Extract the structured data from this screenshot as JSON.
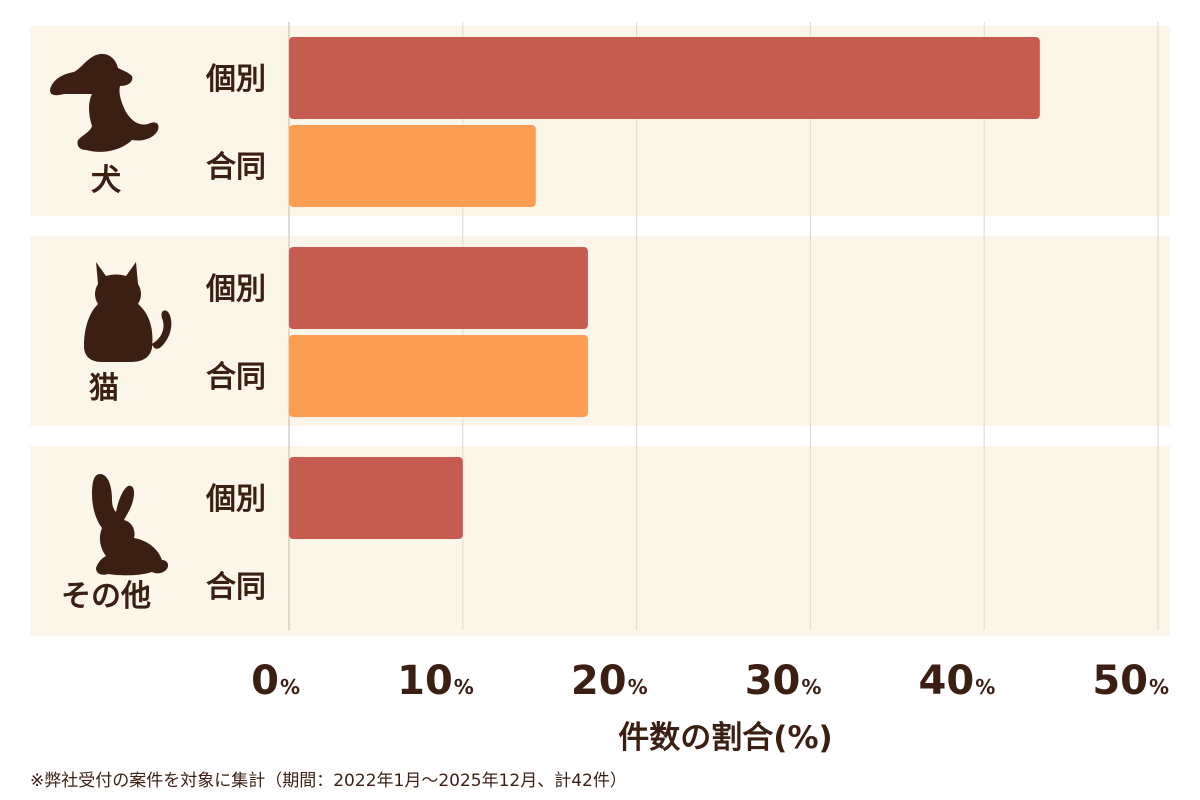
{
  "chart_data": {
    "type": "bar",
    "orientation": "horizontal",
    "groups": [
      {
        "label": "犬",
        "icon": "dog-icon",
        "bars": [
          {
            "label": "個別",
            "value": 43.2
          },
          {
            "label": "合同",
            "value": 14.2
          }
        ]
      },
      {
        "label": "猫",
        "icon": "cat-icon",
        "bars": [
          {
            "label": "個別",
            "value": 17.2
          },
          {
            "label": "合同",
            "value": 17.2
          }
        ]
      },
      {
        "label": "その他",
        "icon": "rabbit-icon",
        "bars": [
          {
            "label": "個別",
            "value": 10.0
          },
          {
            "label": "合同",
            "value": 0
          }
        ]
      }
    ],
    "xlim": [
      0,
      50
    ],
    "ticks": [
      0,
      10,
      20,
      30,
      40,
      50
    ],
    "tick_unit": "%",
    "xlabel": "件数の割合(%)",
    "grid": true
  },
  "colors": {
    "individual": "#c65b4f",
    "joint": "#fd9d54",
    "band": "#fcf6ea",
    "grid": "#e6ddd0",
    "text": "#3b1f12"
  },
  "footnote": "※弊社受付の案件を対象に集計（期間：2022年1月〜2025年12月、計42件）"
}
